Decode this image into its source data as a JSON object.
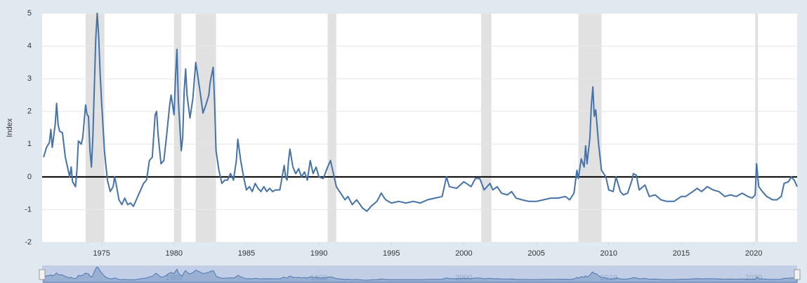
{
  "chart_data": {
    "type": "line",
    "y_label": "Index",
    "x": [
      1971.0,
      1971.2,
      1971.4,
      1971.5,
      1971.6,
      1971.8,
      1971.9,
      1972.0,
      1972.1,
      1972.3,
      1972.5,
      1972.7,
      1972.8,
      1972.9,
      1973.0,
      1973.2,
      1973.3,
      1973.4,
      1973.6,
      1973.7,
      1973.9,
      1974.0,
      1974.1,
      1974.2,
      1974.3,
      1974.4,
      1974.6,
      1974.7,
      1974.8,
      1974.9,
      1975.0,
      1975.2,
      1975.4,
      1975.6,
      1975.8,
      1975.9,
      1976.0,
      1976.2,
      1976.4,
      1976.6,
      1976.8,
      1977.0,
      1977.2,
      1977.4,
      1977.6,
      1977.9,
      1978.1,
      1978.3,
      1978.5,
      1978.7,
      1978.8,
      1978.9,
      1979.1,
      1979.3,
      1979.5,
      1979.7,
      1979.8,
      1980.0,
      1980.1,
      1980.2,
      1980.3,
      1980.5,
      1980.6,
      1980.7,
      1980.8,
      1980.9,
      1981.1,
      1981.3,
      1981.5,
      1981.6,
      1981.8,
      1982.0,
      1982.2,
      1982.4,
      1982.5,
      1982.7,
      1982.8,
      1982.9,
      1983.1,
      1983.3,
      1983.5,
      1983.7,
      1983.9,
      1984.1,
      1984.3,
      1984.4,
      1984.6,
      1984.8,
      1985.0,
      1985.2,
      1985.4,
      1985.6,
      1985.8,
      1986.0,
      1986.2,
      1986.4,
      1986.6,
      1986.8,
      1987.0,
      1987.3,
      1987.6,
      1987.7,
      1987.8,
      1987.9,
      1988.0,
      1988.2,
      1988.4,
      1988.6,
      1988.8,
      1989.0,
      1989.2,
      1989.4,
      1989.6,
      1989.8,
      1990.0,
      1990.3,
      1990.6,
      1990.8,
      1991.0,
      1991.2,
      1991.5,
      1991.8,
      1992.0,
      1992.3,
      1992.6,
      1993.0,
      1993.3,
      1993.6,
      1994.0,
      1994.3,
      1994.6,
      1995.0,
      1995.5,
      1996.0,
      1996.5,
      1997.0,
      1997.5,
      1998.0,
      1998.5,
      1998.8,
      1999.0,
      1999.5,
      2000.0,
      2000.5,
      2000.8,
      2001.1,
      2001.4,
      2001.8,
      2002.0,
      2002.3,
      2002.6,
      2003.0,
      2003.3,
      2003.6,
      2004.0,
      2004.5,
      2005.0,
      2005.5,
      2006.0,
      2006.5,
      2007.0,
      2007.3,
      2007.6,
      2007.8,
      2007.9,
      2008.1,
      2008.3,
      2008.4,
      2008.5,
      2008.7,
      2008.8,
      2008.9,
      2009.0,
      2009.1,
      2009.3,
      2009.5,
      2009.8,
      2010.0,
      2010.3,
      2010.5,
      2010.8,
      2011.0,
      2011.3,
      2011.6,
      2011.7,
      2011.9,
      2012.1,
      2012.5,
      2012.8,
      2013.2,
      2013.6,
      2014.0,
      2014.5,
      2015.0,
      2015.3,
      2015.8,
      2016.1,
      2016.4,
      2016.8,
      2017.2,
      2017.6,
      2018.0,
      2018.4,
      2018.8,
      2019.2,
      2019.6,
      2019.9,
      2020.1,
      2020.2,
      2020.35,
      2020.6,
      2020.9,
      2021.3,
      2021.6,
      2021.9,
      2022.1,
      2022.4,
      2022.6,
      2022.8,
      2023.0
    ],
    "series": [
      {
        "name": "Index",
        "color": "#4572a7",
        "values": [
          0.6,
          0.9,
          1.05,
          1.45,
          0.9,
          1.6,
          2.25,
          1.6,
          1.4,
          1.35,
          0.6,
          0.2,
          0.0,
          0.3,
          -0.15,
          -0.3,
          0.2,
          1.1,
          1.0,
          1.2,
          2.2,
          1.9,
          1.85,
          0.8,
          0.3,
          1.2,
          4.2,
          5.0,
          4.3,
          3.2,
          2.3,
          0.8,
          -0.1,
          -0.45,
          -0.3,
          0.0,
          -0.2,
          -0.7,
          -0.85,
          -0.65,
          -0.85,
          -0.8,
          -0.9,
          -0.7,
          -0.5,
          -0.2,
          -0.1,
          0.5,
          0.6,
          1.9,
          2.0,
          1.3,
          0.4,
          0.5,
          1.3,
          2.2,
          2.5,
          1.9,
          3.0,
          3.9,
          2.3,
          0.8,
          1.2,
          2.6,
          3.3,
          2.5,
          1.8,
          2.4,
          3.5,
          3.2,
          2.6,
          1.95,
          2.2,
          2.5,
          2.9,
          3.35,
          2.3,
          0.8,
          0.2,
          -0.2,
          -0.1,
          -0.1,
          0.1,
          -0.1,
          0.5,
          1.15,
          0.5,
          0.0,
          -0.4,
          -0.3,
          -0.45,
          -0.2,
          -0.35,
          -0.45,
          -0.3,
          -0.45,
          -0.35,
          -0.45,
          -0.4,
          -0.4,
          0.35,
          0.0,
          -0.1,
          0.5,
          0.85,
          0.3,
          0.1,
          0.25,
          0.0,
          0.15,
          -0.1,
          0.5,
          0.1,
          0.3,
          0.0,
          -0.05,
          0.3,
          0.5,
          0.1,
          -0.3,
          -0.5,
          -0.7,
          -0.6,
          -0.85,
          -0.7,
          -0.95,
          -1.05,
          -0.9,
          -0.75,
          -0.5,
          -0.7,
          -0.8,
          -0.75,
          -0.8,
          -0.75,
          -0.8,
          -0.7,
          -0.65,
          -0.6,
          0.0,
          -0.3,
          -0.35,
          -0.15,
          -0.3,
          -0.05,
          -0.05,
          -0.4,
          -0.2,
          -0.4,
          -0.3,
          -0.5,
          -0.55,
          -0.45,
          -0.65,
          -0.7,
          -0.75,
          -0.75,
          -0.7,
          -0.65,
          -0.65,
          -0.6,
          -0.7,
          -0.5,
          0.2,
          -0.05,
          0.55,
          0.3,
          0.95,
          0.4,
          1.2,
          2.2,
          2.75,
          1.85,
          2.05,
          1.0,
          0.2,
          0.0,
          -0.4,
          -0.45,
          0.0,
          -0.45,
          -0.55,
          -0.5,
          -0.1,
          0.1,
          0.05,
          -0.4,
          -0.25,
          -0.6,
          -0.55,
          -0.7,
          -0.75,
          -0.75,
          -0.6,
          -0.6,
          -0.45,
          -0.35,
          -0.45,
          -0.3,
          -0.4,
          -0.45,
          -0.6,
          -0.55,
          -0.6,
          -0.5,
          -0.6,
          -0.65,
          -0.55,
          0.4,
          -0.3,
          -0.45,
          -0.6,
          -0.7,
          -0.7,
          -0.6,
          -0.2,
          -0.15,
          0.0,
          -0.1,
          -0.3
        ]
      }
    ],
    "recessions": [
      [
        1973.9,
        1975.2
      ],
      [
        1980.0,
        1980.5
      ],
      [
        1981.5,
        1982.9
      ],
      [
        1990.6,
        1991.2
      ],
      [
        2001.2,
        2001.9
      ],
      [
        2007.9,
        2009.5
      ],
      [
        2020.1,
        2020.3
      ]
    ],
    "recession_color": "#e1e1e1",
    "xlim": [
      1970.9,
      2023.0
    ],
    "xticks": [
      1975,
      1980,
      1985,
      1990,
      1995,
      2000,
      2005,
      2010,
      2015,
      2020
    ],
    "ylim": [
      -2,
      5
    ],
    "yticks": [
      -2,
      -1,
      0,
      1,
      2,
      3,
      4,
      5
    ],
    "grid": true,
    "navigator_xticks": [
      1980,
      1990,
      2000,
      2010,
      2020
    ]
  }
}
